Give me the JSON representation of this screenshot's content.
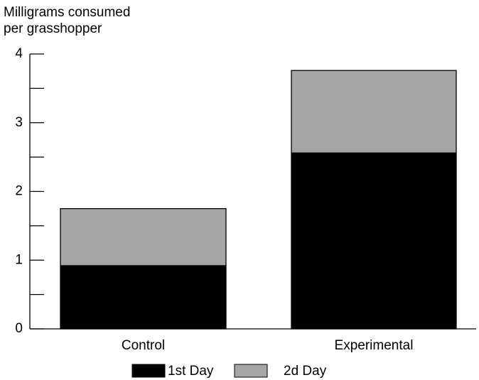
{
  "chart_data": {
    "type": "stacked_bar",
    "ylabel_lines": [
      "Milligrams consumed",
      "per grasshopper"
    ],
    "categories": [
      "Control",
      "Experimental"
    ],
    "series": [
      {
        "name": "1st Day",
        "color": "#000000",
        "values": [
          0.92,
          2.56
        ]
      },
      {
        "name": "2d Day",
        "color": "#a6a6a6",
        "values": [
          0.83,
          1.2
        ]
      }
    ],
    "ylim": [
      0,
      4
    ],
    "yticks": [
      0,
      1,
      2,
      3,
      4
    ],
    "yminor_ticks": [
      0.5,
      1.5,
      2.5,
      3.5
    ],
    "grid": false,
    "legend": "bottom"
  }
}
